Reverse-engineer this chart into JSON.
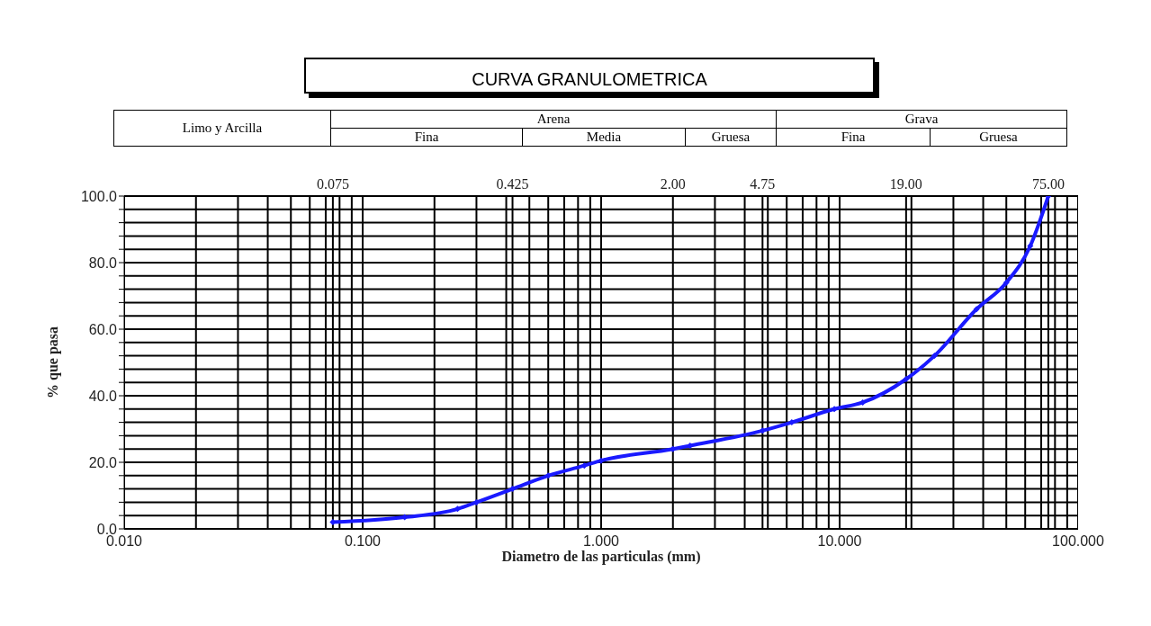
{
  "chart_data": {
    "type": "line",
    "title": "CURVA GRANULOMETRICA",
    "xlabel": "Diametro de las particulas (mm)",
    "ylabel": "% que pasa",
    "annotations": [
      "Limo y Arcilla",
      "Arena",
      "Fina",
      "Media",
      "Gruesa",
      "Grava",
      "Fina",
      "Gruesa"
    ],
    "ref_lines": [
      {
        "axis": "x",
        "value": 0.075,
        "label": "0.075",
        "color": "#000000"
      },
      {
        "axis": "x",
        "value": 0.425,
        "label": "0.425",
        "color": "#000000"
      },
      {
        "axis": "x",
        "value": 2,
        "label": "2.00",
        "color": "#000000"
      },
      {
        "axis": "x",
        "value": 4.75,
        "label": "4.75",
        "color": "#000000"
      },
      {
        "axis": "x",
        "value": 19,
        "label": "19.00",
        "color": "#000000"
      },
      {
        "axis": "x",
        "value": 75,
        "label": "75.00",
        "color": "#000000"
      }
    ],
    "log": "x",
    "x": [
      0.075,
      0.15,
      0.25,
      0.3,
      0.425,
      0.6,
      0.85,
      1.0,
      2.0,
      2.36,
      4.75,
      6.3,
      9.5,
      12.5,
      19.0,
      25.0,
      37.5,
      50.0,
      63.0,
      75.0
    ],
    "series": [
      {
        "color": "#1a1aff",
        "values": [
          2,
          3.5,
          6,
          8,
          12,
          16,
          19,
          20.5,
          24,
          25,
          29.5,
          32,
          36,
          38,
          45,
          52,
          66,
          74,
          85,
          100
        ]
      }
    ],
    "marker": "diamond",
    "line_style": "solid",
    "grid": true,
    "xlim": [
      0.01,
      100
    ],
    "xticks": [
      {
        "value": 0.01,
        "label": "0.010"
      },
      {
        "value": 0.02,
        "label": null
      },
      {
        "value": 0.03,
        "label": null
      },
      {
        "value": 0.04,
        "label": null
      },
      {
        "value": 0.05,
        "label": null
      },
      {
        "value": 0.06,
        "label": null
      },
      {
        "value": 0.07,
        "label": null
      },
      {
        "value": 0.08,
        "label": null
      },
      {
        "value": 0.09,
        "label": null
      },
      {
        "value": 0.1,
        "label": "0.100"
      },
      {
        "value": 0.2,
        "label": null
      },
      {
        "value": 0.3,
        "label": null
      },
      {
        "value": 0.4,
        "label": null
      },
      {
        "value": 0.5,
        "label": null
      },
      {
        "value": 0.6,
        "label": null
      },
      {
        "value": 0.7,
        "label": null
      },
      {
        "value": 0.8,
        "label": null
      },
      {
        "value": 0.9,
        "label": null
      },
      {
        "value": 1,
        "label": "1.000"
      },
      {
        "value": 3,
        "label": null
      },
      {
        "value": 4,
        "label": null
      },
      {
        "value": 5,
        "label": null
      },
      {
        "value": 6,
        "label": null
      },
      {
        "value": 7,
        "label": null
      },
      {
        "value": 8,
        "label": null
      },
      {
        "value": 9,
        "label": null
      },
      {
        "value": 10,
        "label": "10.000"
      },
      {
        "value": 20,
        "label": null
      },
      {
        "value": 30,
        "label": null
      },
      {
        "value": 40,
        "label": null
      },
      {
        "value": 50,
        "label": null
      },
      {
        "value": 60,
        "label": null
      },
      {
        "value": 70,
        "label": null
      },
      {
        "value": 80,
        "label": null
      },
      {
        "value": 90,
        "label": null
      },
      {
        "value": 100,
        "label": "100.000"
      }
    ],
    "ylim": [
      0,
      100
    ],
    "yticks": [
      {
        "value": 0,
        "label": "0.0"
      },
      {
        "value": 4,
        "label": null
      },
      {
        "value": 8,
        "label": null
      },
      {
        "value": 12,
        "label": null
      },
      {
        "value": 16,
        "label": null
      },
      {
        "value": 20,
        "label": "20.0"
      },
      {
        "value": 24,
        "label": null
      },
      {
        "value": 28,
        "label": null
      },
      {
        "value": 32,
        "label": null
      },
      {
        "value": 36,
        "label": null
      },
      {
        "value": 40,
        "label": "40.0"
      },
      {
        "value": 44,
        "label": null
      },
      {
        "value": 48,
        "label": null
      },
      {
        "value": 52,
        "label": null
      },
      {
        "value": 56,
        "label": null
      },
      {
        "value": 60,
        "label": "60.0"
      },
      {
        "value": 64,
        "label": null
      },
      {
        "value": 68,
        "label": null
      },
      {
        "value": 72,
        "label": null
      },
      {
        "value": 76,
        "label": null
      },
      {
        "value": 80,
        "label": "80.0"
      },
      {
        "value": 84,
        "label": null
      },
      {
        "value": 88,
        "label": null
      },
      {
        "value": 92,
        "label": null
      },
      {
        "value": 96,
        "label": null
      },
      {
        "value": 100,
        "label": "100.0"
      }
    ]
  }
}
